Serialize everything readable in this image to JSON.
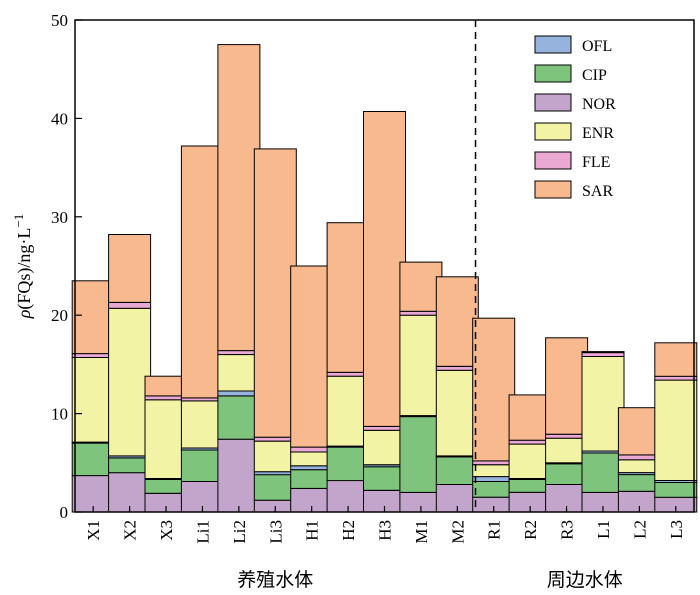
{
  "chart_data": {
    "type": "bar",
    "stacked": true,
    "categories": [
      "X1",
      "X2",
      "X3",
      "Li1",
      "Li2",
      "Li3",
      "H1",
      "H2",
      "H3",
      "M1",
      "M2",
      "R1",
      "R2",
      "R3",
      "L1",
      "L2",
      "L3"
    ],
    "series": [
      {
        "name": "NOR",
        "color": "#C3A5CB",
        "values": [
          3.7,
          4.0,
          1.9,
          3.1,
          7.4,
          1.2,
          2.4,
          3.2,
          2.2,
          2.0,
          2.8,
          1.5,
          2.0,
          2.8,
          2.0,
          2.1,
          1.5
        ]
      },
      {
        "name": "CIP",
        "color": "#7FC47C",
        "values": [
          3.3,
          1.5,
          1.4,
          3.2,
          4.4,
          2.6,
          1.9,
          3.4,
          2.4,
          7.7,
          2.8,
          1.6,
          1.3,
          2.1,
          4.0,
          1.7,
          1.5
        ]
      },
      {
        "name": "OFL",
        "color": "#96B3DD",
        "values": [
          0.1,
          0.2,
          0.1,
          0.2,
          0.5,
          0.3,
          0.4,
          0.1,
          0.2,
          0.1,
          0.1,
          0.5,
          0.1,
          0.1,
          0.2,
          0.2,
          0.2
        ]
      },
      {
        "name": "ENR",
        "color": "#F3F3A5",
        "values": [
          8.6,
          15.0,
          8.0,
          4.8,
          3.7,
          3.1,
          1.4,
          7.1,
          3.5,
          10.2,
          8.7,
          1.2,
          3.5,
          2.5,
          9.6,
          1.3,
          10.2
        ]
      },
      {
        "name": "FLE",
        "color": "#E9A9D3",
        "values": [
          0.4,
          0.6,
          0.4,
          0.3,
          0.4,
          0.4,
          0.5,
          0.4,
          0.4,
          0.4,
          0.4,
          0.4,
          0.4,
          0.4,
          0.4,
          0.5,
          0.4
        ]
      },
      {
        "name": "SAR",
        "color": "#F8B98E",
        "values": [
          7.4,
          6.9,
          2.0,
          25.6,
          31.1,
          29.3,
          18.4,
          15.2,
          32.0,
          5.0,
          9.1,
          14.5,
          4.6,
          9.8,
          0.1,
          4.8,
          3.4
        ]
      }
    ],
    "legend_order": [
      "OFL",
      "CIP",
      "NOR",
      "ENR",
      "FLE",
      "SAR"
    ],
    "ylabel": "ρ(FQs)/ng·L⁻¹",
    "ylabel_parts": {
      "rho": "ρ",
      "main": "(FQs)/ng·L",
      "sup": "−1"
    },
    "ylim": [
      0,
      50
    ],
    "yticks": [
      0,
      10,
      20,
      30,
      40,
      50
    ],
    "groups": [
      {
        "label": "养殖水体",
        "first": 0,
        "last": 10
      },
      {
        "label": "周边水体",
        "first": 11,
        "last": 16
      }
    ],
    "legend_position": "top-right",
    "grid": false
  }
}
